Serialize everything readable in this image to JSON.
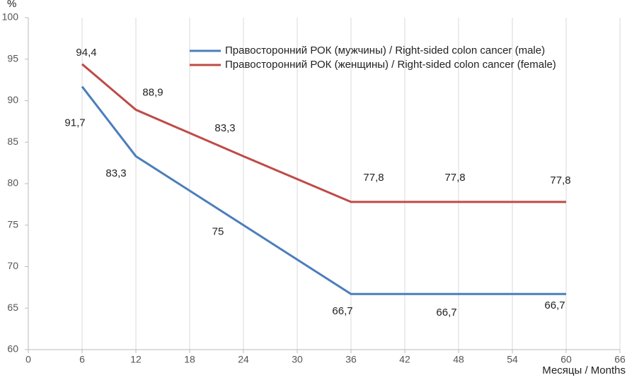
{
  "chart_data": {
    "type": "line",
    "y_label": "%",
    "x_label": "Месяцы / Months",
    "x": [
      6,
      12,
      24,
      36,
      48,
      60
    ],
    "series": [
      {
        "name": "Правосторонний РОК (мужчины) / Right-sided colon cancer (male)",
        "color": "#4a7ebb",
        "values": [
          91.7,
          83.3,
          75,
          66.7,
          66.7,
          66.7
        ],
        "value_labels": [
          "91,7",
          "83,3",
          "75",
          "66,7",
          "66,7",
          "66,7"
        ]
      },
      {
        "name": "Правосторонний РОК (женщины) / Right-sided colon cancer (female)",
        "color": "#be4b48",
        "values": [
          94.4,
          88.9,
          83.3,
          77.8,
          77.8,
          77.8
        ],
        "value_labels": [
          "94,4",
          "88,9",
          "83,3",
          "77,8",
          "77,8",
          "77,8"
        ]
      }
    ],
    "xlim": [
      0,
      66
    ],
    "xticks": [
      0,
      6,
      12,
      18,
      24,
      30,
      36,
      42,
      48,
      54,
      60,
      66
    ],
    "ylim": [
      60,
      100
    ],
    "yticks": [
      60,
      65,
      70,
      75,
      80,
      85,
      90,
      95,
      100
    ],
    "grid": "x",
    "legend": "upper right"
  }
}
